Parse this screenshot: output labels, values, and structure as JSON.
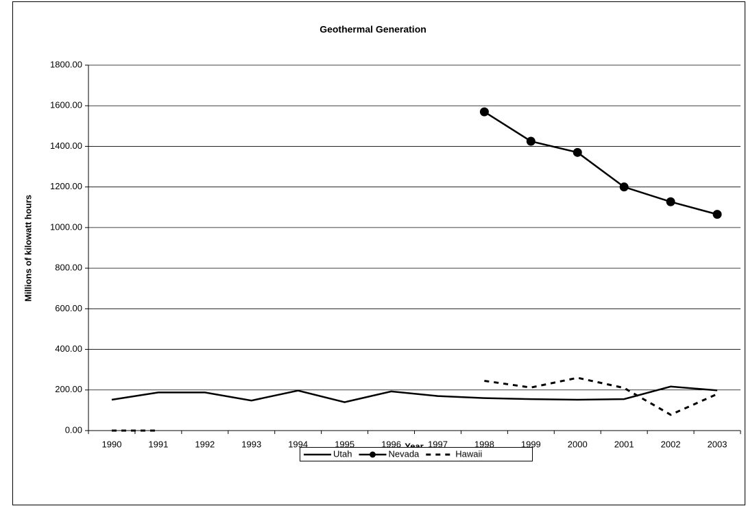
{
  "chart_data": {
    "type": "line",
    "title": "Geothermal Generation",
    "x_label": "Year",
    "y_label": "Millions of kilowatt hours",
    "categories": [
      "1990",
      "1991",
      "1992",
      "1993",
      "1994",
      "1995",
      "1996",
      "1997",
      "1998",
      "1999",
      "2000",
      "2001",
      "2002",
      "2003"
    ],
    "series": [
      {
        "name": "Utah",
        "color": "#000000",
        "values": [
          152,
          188,
          188,
          148,
          197,
          140,
          193,
          170,
          160,
          155,
          152,
          155,
          217,
          198
        ]
      },
      {
        "name": "Nevada",
        "color": "#000000",
        "marker": "circle",
        "values": [
          null,
          null,
          null,
          null,
          null,
          null,
          null,
          null,
          1570,
          1425,
          1370,
          1200,
          1127,
          1065
        ]
      },
      {
        "name": "Hawaii",
        "color": "#000000",
        "dash": true,
        "values": [
          0,
          0,
          null,
          null,
          null,
          null,
          null,
          null,
          245,
          212,
          260,
          210,
          78,
          180
        ]
      }
    ],
    "ylim": [
      0,
      1800
    ],
    "yticks": [
      {
        "value": 0,
        "label": "0.00"
      },
      {
        "value": 200,
        "label": "200.00"
      },
      {
        "value": 400,
        "label": "400.00"
      },
      {
        "value": 600,
        "label": "600.00"
      },
      {
        "value": 800,
        "label": "800.00"
      },
      {
        "value": 1000,
        "label": "1000.00"
      },
      {
        "value": 1200,
        "label": "1200.00"
      },
      {
        "value": 1400,
        "label": "1400.00"
      },
      {
        "value": 1600,
        "label": "1600.00"
      },
      {
        "value": 1800,
        "label": "1800.00"
      }
    ],
    "grid": true,
    "legend": "bottom"
  }
}
